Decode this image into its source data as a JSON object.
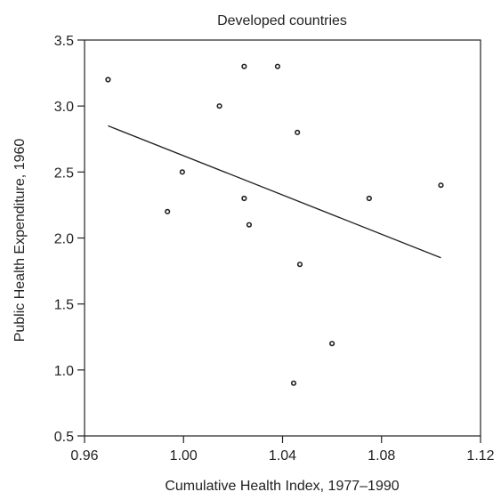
{
  "chart_data": {
    "type": "scatter",
    "title": "Developed countries",
    "xlabel": "Cumulative Health Index, 1977–1990",
    "ylabel": "Public Health Expenditure, 1960",
    "xlim": [
      0.96,
      1.12
    ],
    "ylim": [
      0.5,
      3.5
    ],
    "x_ticks": [
      "0.96",
      "1.00",
      "1.04",
      "1.08",
      "1.12"
    ],
    "y_ticks": [
      "0.5",
      "1.0",
      "1.5",
      "2.0",
      "2.5",
      "3.0",
      "3.5"
    ],
    "grid": false,
    "points": [
      {
        "x": 0.9695,
        "y": 3.2
      },
      {
        "x": 0.9935,
        "y": 2.2
      },
      {
        "x": 0.9995,
        "y": 2.5
      },
      {
        "x": 1.0145,
        "y": 3.0
      },
      {
        "x": 1.0245,
        "y": 3.3
      },
      {
        "x": 1.0245,
        "y": 2.3
      },
      {
        "x": 1.0265,
        "y": 2.1
      },
      {
        "x": 1.038,
        "y": 3.3
      },
      {
        "x": 1.0445,
        "y": 0.9
      },
      {
        "x": 1.046,
        "y": 2.8
      },
      {
        "x": 1.047,
        "y": 1.8
      },
      {
        "x": 1.06,
        "y": 1.2
      },
      {
        "x": 1.075,
        "y": 2.3
      },
      {
        "x": 1.104,
        "y": 2.4
      }
    ],
    "fit_line": {
      "x": [
        0.9695,
        1.104
      ],
      "y": [
        2.85,
        1.85
      ]
    }
  }
}
